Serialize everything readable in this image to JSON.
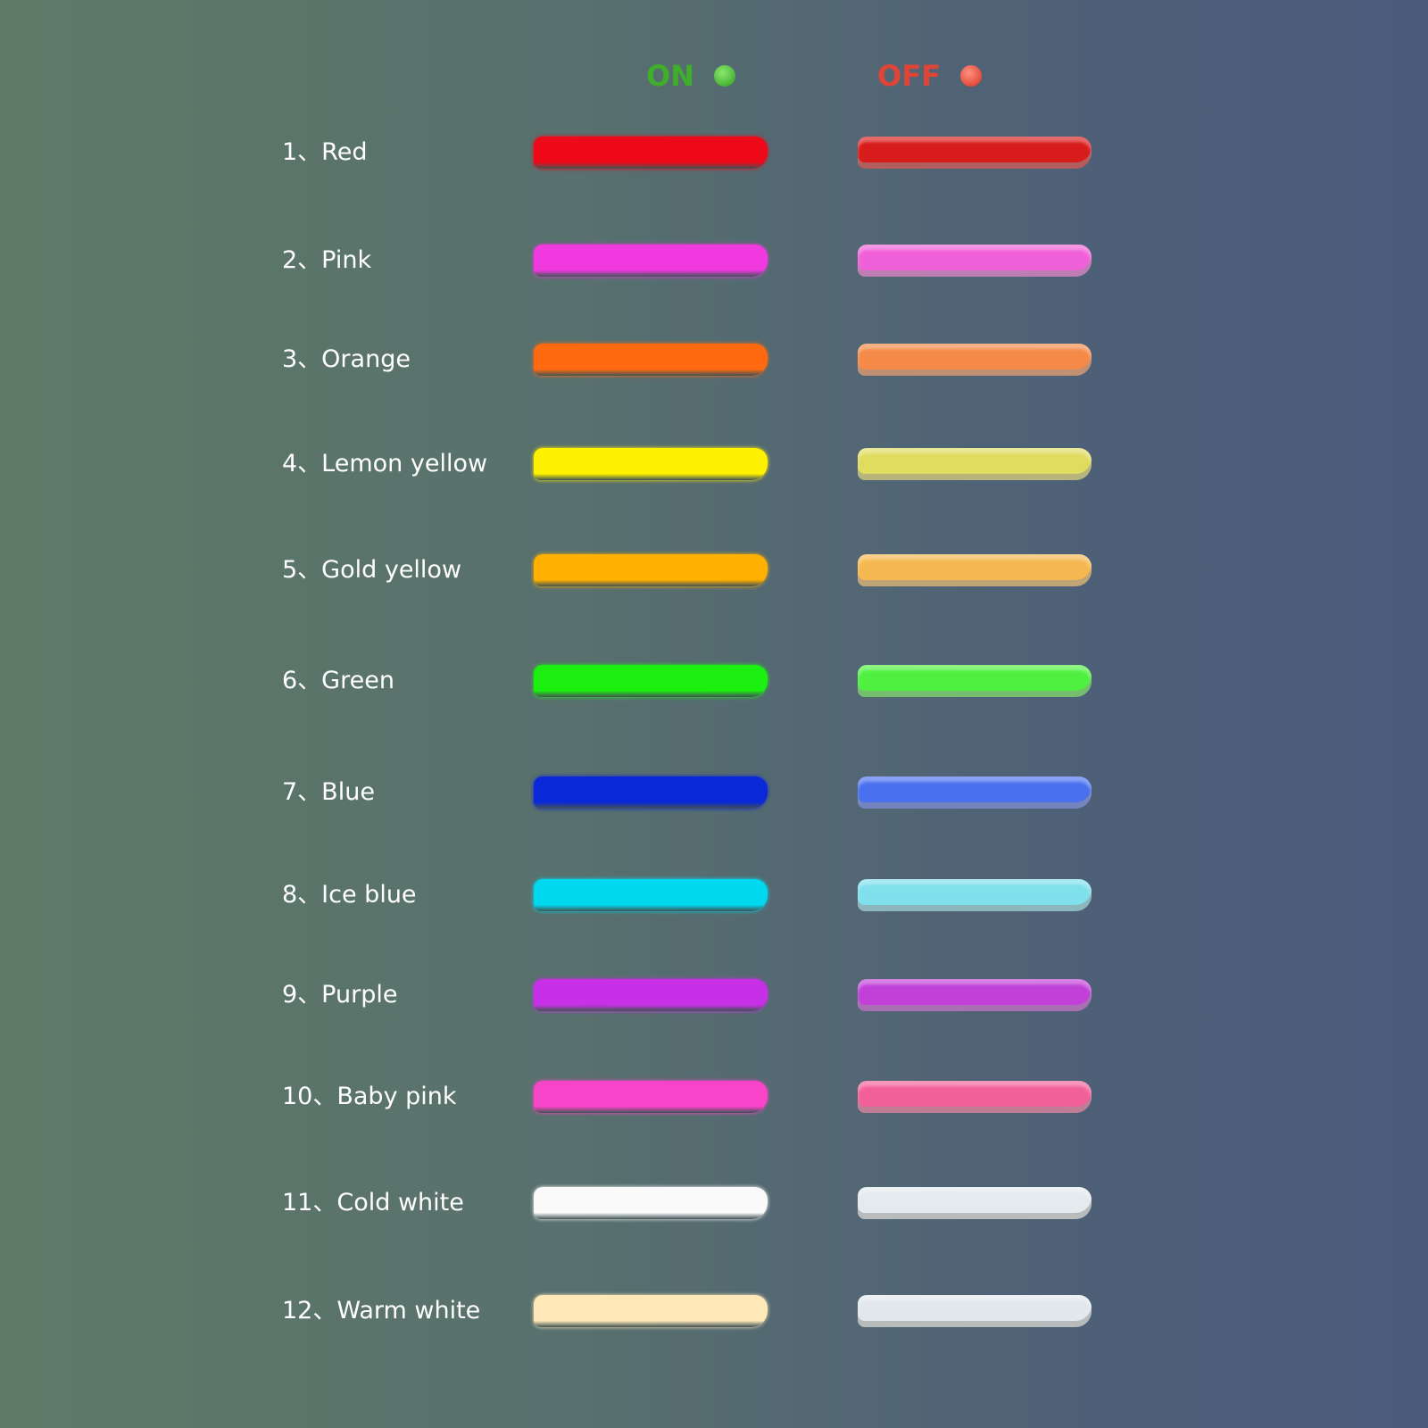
{
  "header": {
    "on_label": "ON",
    "off_label": "OFF",
    "on_color": "#3fae2a",
    "off_color": "#e04436"
  },
  "items": [
    {
      "label": "1、Red",
      "on": "#ee0a18",
      "off": "#d81c1c"
    },
    {
      "label": "2、Pink",
      "on": "#f03ae0",
      "off": "#f060d8"
    },
    {
      "label": "3、Orange",
      "on": "#ff6a10",
      "off": "#f58a48"
    },
    {
      "label": "4、Lemon yellow",
      "on": "#fff200",
      "off": "#e0dc60"
    },
    {
      "label": "5、Gold yellow",
      "on": "#ffb000",
      "off": "#f5b850"
    },
    {
      "label": "6、Green",
      "on": "#1cf010",
      "off": "#50f040"
    },
    {
      "label": "7、Blue",
      "on": "#0a28d8",
      "off": "#4a70f0"
    },
    {
      "label": "8、Ice blue",
      "on": "#00d8f0",
      "off": "#80e0ec"
    },
    {
      "label": "9、Purple",
      "on": "#c830e8",
      "off": "#c040d8"
    },
    {
      "label": "10、Baby pink",
      "on": "#f844c8",
      "off": "#f26098"
    },
    {
      "label": "11、Cold white",
      "on": "#fafafa",
      "off": "#e4eaee"
    },
    {
      "label": "12、Warm white",
      "on": "#ffe8b8",
      "off": "#e2e8ec"
    }
  ]
}
